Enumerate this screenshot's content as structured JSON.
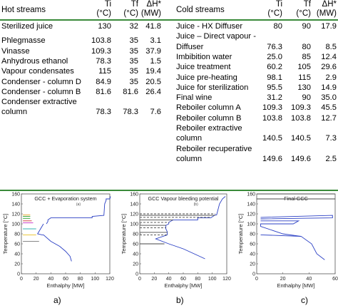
{
  "table": {
    "headers": {
      "hot": "Hot streams",
      "ti": "Ti",
      "ti_unit": "(°C)",
      "tf": "Tf",
      "tf_unit": "(°C)",
      "dh": "ΔH*",
      "dh_unit": "(MW)",
      "cold": "Cold streams",
      "ti2": "Ti",
      "ti2_unit": "(°C)",
      "tf2": "Tf",
      "tf2_unit": "(°C)",
      "dh2": "ΔH*",
      "dh2_unit": "(MW)"
    },
    "hot_rows": [
      {
        "name": [
          "Sterilized juice"
        ],
        "ti": "130",
        "tf": "32",
        "dh": "41.8"
      },
      {
        "name": [
          "Phlegmasse"
        ],
        "ti": "103.8",
        "tf": "35",
        "dh": "3.1"
      },
      {
        "name": [
          "Vinasse"
        ],
        "ti": "109.3",
        "tf": "35",
        "dh": "37.9"
      },
      {
        "name": [
          "Anhydrous ethanol"
        ],
        "ti": "78.3",
        "tf": "35",
        "dh": "1.5"
      },
      {
        "name": [
          "Vapour condensates"
        ],
        "ti": "115",
        "tf": "35",
        "dh": "19.4"
      },
      {
        "name": [
          "Condenser - column D"
        ],
        "ti": "84.9",
        "tf": "35",
        "dh": "20.5"
      },
      {
        "name": [
          "Condenser - column B"
        ],
        "ti": "81.6",
        "tf": "81.6",
        "dh": "26.4"
      },
      {
        "name": [
          "Condenser extractive",
          "column"
        ],
        "ti": "78.3",
        "tf": "78.3",
        "dh": "7.6"
      }
    ],
    "cold_rows": [
      {
        "name": [
          "Juice - HX Diffuser"
        ],
        "ti": "80",
        "tf": "90",
        "dh": "17.9"
      },
      {
        "name": [
          "Juice – Direct vapour -",
          "Diffuser"
        ],
        "ti": "76.3",
        "tf": "80",
        "dh": "8.5"
      },
      {
        "name": [
          "Imbibition water"
        ],
        "ti": "25.0",
        "tf": "85",
        "dh": "12.4"
      },
      {
        "name": [
          "Juice treatment"
        ],
        "ti": "60.2",
        "tf": "105",
        "dh": "29.6"
      },
      {
        "name": [
          "Juice pre-heating"
        ],
        "ti": "98.1",
        "tf": "115",
        "dh": "2.9"
      },
      {
        "name": [
          "Juice for sterilization"
        ],
        "ti": "95.5",
        "tf": "130",
        "dh": "14.9"
      },
      {
        "name": [
          "Final wine"
        ],
        "ti": "31.2",
        "tf": "90",
        "dh": "35.0"
      },
      {
        "name": [
          "Reboiler column A"
        ],
        "ti": "109.3",
        "tf": "109.3",
        "dh": "45.5"
      },
      {
        "name": [
          "Reboiler column B"
        ],
        "ti": "103.8",
        "tf": "103.8",
        "dh": "12.7"
      },
      {
        "name": [
          "Reboiler extractive",
          "column"
        ],
        "ti": "140.5",
        "tf": "140.5",
        "dh": "7.3"
      },
      {
        "name": [
          "Reboiler recuperative",
          "column"
        ],
        "ti": "149.6",
        "tf": "149.6",
        "dh": "2.5"
      }
    ]
  },
  "chart_data": [
    {
      "type": "line",
      "title": "GCC + Evaporation system",
      "panel_mark": "(a)",
      "xlabel": "Enthalphy [MW]",
      "ylabel": "Temperature [°C]",
      "xlim": [
        0,
        120
      ],
      "ylim": [
        0,
        160
      ],
      "xticks": [
        "0",
        "20",
        "40",
        "60",
        "80",
        "100",
        "120"
      ],
      "yticks": [
        "0",
        "20",
        "40",
        "60",
        "80",
        "100",
        "120",
        "140",
        "160"
      ],
      "series": [
        {
          "color": "#2a3fc4",
          "points": [
            [
              34,
              100
            ],
            [
              36,
              105
            ],
            [
              36,
              108
            ],
            [
              40,
              112
            ],
            [
              96,
              112
            ],
            [
              96,
              115
            ],
            [
              112,
              117
            ],
            [
              113,
              140
            ],
            [
              115,
              147
            ],
            [
              115,
              150
            ],
            [
              120,
              150
            ],
            [
              121,
              155
            ]
          ]
        },
        {
          "color": "#2a3fc4",
          "points": [
            [
              30,
              100
            ],
            [
              22,
              80
            ],
            [
              28,
              78
            ],
            [
              30,
              78
            ],
            [
              40,
              65
            ],
            [
              52,
              55
            ],
            [
              60,
              45
            ],
            [
              66,
              35
            ],
            [
              68,
              25
            ]
          ]
        },
        {
          "color": "#e8a020",
          "points": [
            [
              2,
              118
            ],
            [
              12,
              118
            ]
          ]
        },
        {
          "color": "#2aa02a",
          "points": [
            [
              2,
              115
            ],
            [
              12,
              115
            ]
          ]
        },
        {
          "color": "#2aa02a",
          "points": [
            [
              2,
              111
            ],
            [
              12,
              111
            ]
          ]
        },
        {
          "color": "#c83030",
          "points": [
            [
              2,
              106
            ],
            [
              14,
              106
            ]
          ]
        },
        {
          "color": "#c830c8",
          "points": [
            [
              2,
              102
            ],
            [
              16,
              102
            ]
          ]
        },
        {
          "color": "#30b0b0",
          "points": [
            [
              2,
              90
            ],
            [
              20,
              90
            ]
          ]
        },
        {
          "color": "#e8c020",
          "points": [
            [
              2,
              78
            ],
            [
              20,
              78
            ]
          ]
        },
        {
          "color": "#888888",
          "points": [
            [
              2,
              65
            ],
            [
              24,
              65
            ]
          ]
        }
      ]
    },
    {
      "type": "line",
      "title": "GCC Vapour bleeding potential",
      "panel_mark": "(b)",
      "xlabel": "Enthalphy [MW]",
      "ylabel": "Temperature [°C]",
      "xlim": [
        0,
        120
      ],
      "ylim": [
        0,
        160
      ],
      "xticks": [
        "0",
        "20",
        "40",
        "60",
        "80",
        "100",
        "120"
      ],
      "yticks": [
        "0",
        "20",
        "40",
        "60",
        "80",
        "100",
        "120",
        "140",
        "160"
      ],
      "series": [
        {
          "color": "#2a3fc4",
          "points": [
            [
              38,
              78
            ],
            [
              38,
              84
            ],
            [
              36,
              90
            ],
            [
              36,
              97
            ],
            [
              40,
              100
            ],
            [
              40,
              103
            ],
            [
              46,
              108
            ],
            [
              80,
              108
            ],
            [
              80,
              112
            ],
            [
              98,
              112
            ],
            [
              104,
              118
            ],
            [
              106,
              118
            ],
            [
              110,
              140
            ],
            [
              114,
              150
            ],
            [
              118,
              155
            ]
          ]
        },
        {
          "color": "#2a3fc4",
          "points": [
            [
              38,
              78
            ],
            [
              22,
              70
            ],
            [
              40,
              60
            ],
            [
              60,
              50
            ],
            [
              78,
              38
            ],
            [
              90,
              30
            ]
          ]
        },
        {
          "color": "#444444",
          "points": [
            [
              0,
              120
            ],
            [
              104,
              120
            ]
          ]
        },
        {
          "color": "#444444",
          "points": [
            [
              0,
              117
            ],
            [
              104,
              117
            ]
          ]
        },
        {
          "color": "#444444",
          "points": [
            [
              0,
              113
            ],
            [
              98,
              113
            ]
          ]
        },
        {
          "color": "#444444",
          "points": [
            [
              0,
              108
            ],
            [
              46,
              108
            ]
          ]
        },
        {
          "color": "#444444",
          "points": [
            [
              0,
              103
            ],
            [
              40,
              103
            ]
          ]
        },
        {
          "color": "#444444",
          "points": [
            [
              0,
              97
            ],
            [
              36,
              97
            ]
          ]
        },
        {
          "color": "#444444",
          "points": [
            [
              0,
              92
            ],
            [
              36,
              92
            ]
          ]
        },
        {
          "color": "#444444",
          "points": [
            [
              0,
              83
            ],
            [
              38,
              83
            ]
          ]
        },
        {
          "color": "#444444",
          "points": [
            [
              0,
              78
            ],
            [
              38,
              78
            ]
          ]
        },
        {
          "color": "#444444",
          "points": [
            [
              0,
              60
            ],
            [
              34,
              60
            ]
          ]
        }
      ]
    },
    {
      "type": "line",
      "title": "Final GCC",
      "panel_mark": "",
      "xlabel": "Enthalphy [MW]",
      "ylabel": "Temperature [°C]",
      "xlim": [
        0,
        60
      ],
      "ylim": [
        0,
        160
      ],
      "xticks": [
        "0",
        "20",
        "40",
        "60"
      ],
      "yticks": [
        "0",
        "20",
        "40",
        "60",
        "80",
        "100",
        "120",
        "140",
        "160"
      ],
      "series": [
        {
          "color": "#2a3fc4",
          "points": [
            [
              3,
              113
            ],
            [
              58,
              117
            ],
            [
              58,
              112
            ],
            [
              3,
              110
            ]
          ]
        },
        {
          "color": "#2a3fc4",
          "points": [
            [
              3,
              106
            ],
            [
              32,
              106
            ],
            [
              28,
              100
            ],
            [
              3,
              100
            ],
            [
              3,
              95
            ],
            [
              20,
              80
            ],
            [
              34,
              75
            ],
            [
              42,
              60
            ],
            [
              46,
              40
            ],
            [
              52,
              28
            ]
          ]
        },
        {
          "color": "#2a3fc4",
          "points": [
            [
              3,
              78
            ],
            [
              34,
              75
            ]
          ]
        },
        {
          "color": "#444444",
          "points": [
            [
              0,
              160
            ],
            [
              60,
              160
            ]
          ]
        },
        {
          "color": "#444444",
          "points": [
            [
              0,
              150
            ],
            [
              60,
              150
            ]
          ]
        }
      ]
    }
  ],
  "labels": {
    "a": "a)",
    "b": "b)",
    "c": "c)"
  }
}
